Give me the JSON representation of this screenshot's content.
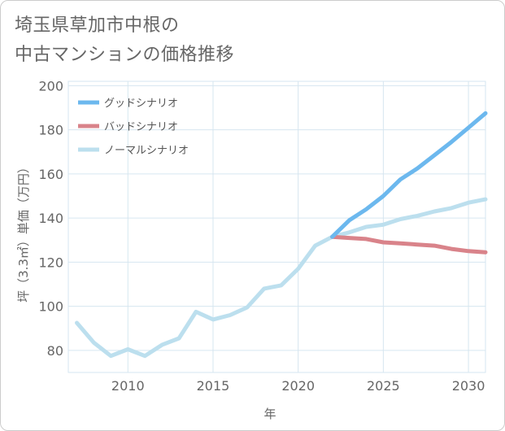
{
  "header": {
    "title_line1": "埼玉県草加市中根の",
    "title_line2": "中古マンションの価格推移"
  },
  "colors": {
    "good": "#6cb8ee",
    "bad": "#d9838a",
    "normal": "#bcdfee",
    "grid": "#d6e6f0",
    "axis_text": "#666666"
  },
  "chart_data": {
    "type": "line",
    "xlabel": "年",
    "ylabel": "坪（3.3㎡）単価（万円）",
    "xlim": [
      2006.5,
      2031
    ],
    "ylim": [
      70,
      202
    ],
    "xticks": [
      2010,
      2015,
      2020,
      2025,
      2030
    ],
    "yticks": [
      80,
      100,
      120,
      140,
      160,
      180,
      200
    ],
    "legend_position": "top-left",
    "grid": true,
    "series": [
      {
        "name": "グッドシナリオ",
        "color_key": "good",
        "x": [
          2022,
          2023,
          2024,
          2025,
          2026,
          2027,
          2028,
          2029,
          2030,
          2031
        ],
        "y": [
          131.5,
          139,
          144,
          150,
          157.5,
          162.5,
          168.5,
          174.5,
          181,
          187.5
        ]
      },
      {
        "name": "バッドシナリオ",
        "color_key": "bad",
        "x": [
          2022,
          2023,
          2024,
          2025,
          2026,
          2027,
          2028,
          2029,
          2030,
          2031
        ],
        "y": [
          131.5,
          131,
          130.5,
          129,
          128.5,
          128,
          127.5,
          126,
          125,
          124.5
        ]
      },
      {
        "name": "ノーマルシナリオ",
        "color_key": "normal",
        "x": [
          2007,
          2008,
          2009,
          2010,
          2011,
          2012,
          2013,
          2014,
          2015,
          2016,
          2017,
          2018,
          2019,
          2020,
          2021,
          2022,
          2023,
          2024,
          2025,
          2026,
          2027,
          2028,
          2029,
          2030,
          2031
        ],
        "y": [
          92.5,
          83.5,
          77.5,
          80.5,
          77.5,
          82.5,
          85.5,
          97.5,
          94,
          96,
          99.5,
          108,
          109.5,
          117,
          127.5,
          131.5,
          133.5,
          136,
          137,
          139.5,
          141,
          143,
          144.5,
          147,
          148.5
        ]
      }
    ]
  }
}
